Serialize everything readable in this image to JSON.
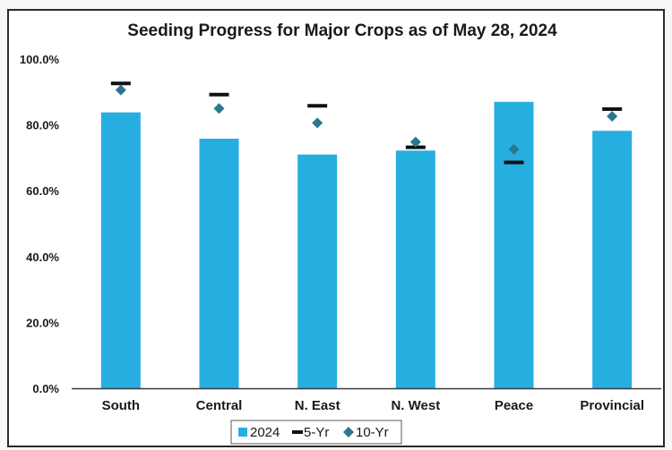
{
  "chart_data": {
    "type": "bar",
    "title": "Seeding Progress for Major Crops as of May 28, 2024",
    "xlabel": "",
    "ylabel": "",
    "categories": [
      "South",
      "Central",
      "N. East",
      "N. West",
      "Peace",
      "Provincial"
    ],
    "series": [
      {
        "name": "2024",
        "type": "bar",
        "marker": "square",
        "values": [
          83.8,
          75.8,
          71.0,
          72.2,
          87.0,
          78.2
        ]
      },
      {
        "name": "5-Yr",
        "type": "marker",
        "marker": "dash",
        "values": [
          92.6,
          89.2,
          85.8,
          73.2,
          68.6,
          84.8
        ]
      },
      {
        "name": "10-Yr",
        "type": "marker",
        "marker": "diamond",
        "values": [
          90.6,
          85.0,
          80.6,
          74.8,
          72.6,
          82.6
        ]
      }
    ],
    "ylim": [
      0,
      100
    ],
    "yticks": [
      "0.0%",
      "20.0%",
      "40.0%",
      "60.0%",
      "80.0%",
      "100.0%"
    ],
    "ytick_values": [
      0,
      20,
      40,
      60,
      80,
      100
    ],
    "grid": false,
    "legend": "bottom",
    "colors": {
      "bar": "#27aee0",
      "five_yr": "#111111",
      "ten_yr": "#2b7790",
      "text": "#1a1a1a"
    }
  }
}
